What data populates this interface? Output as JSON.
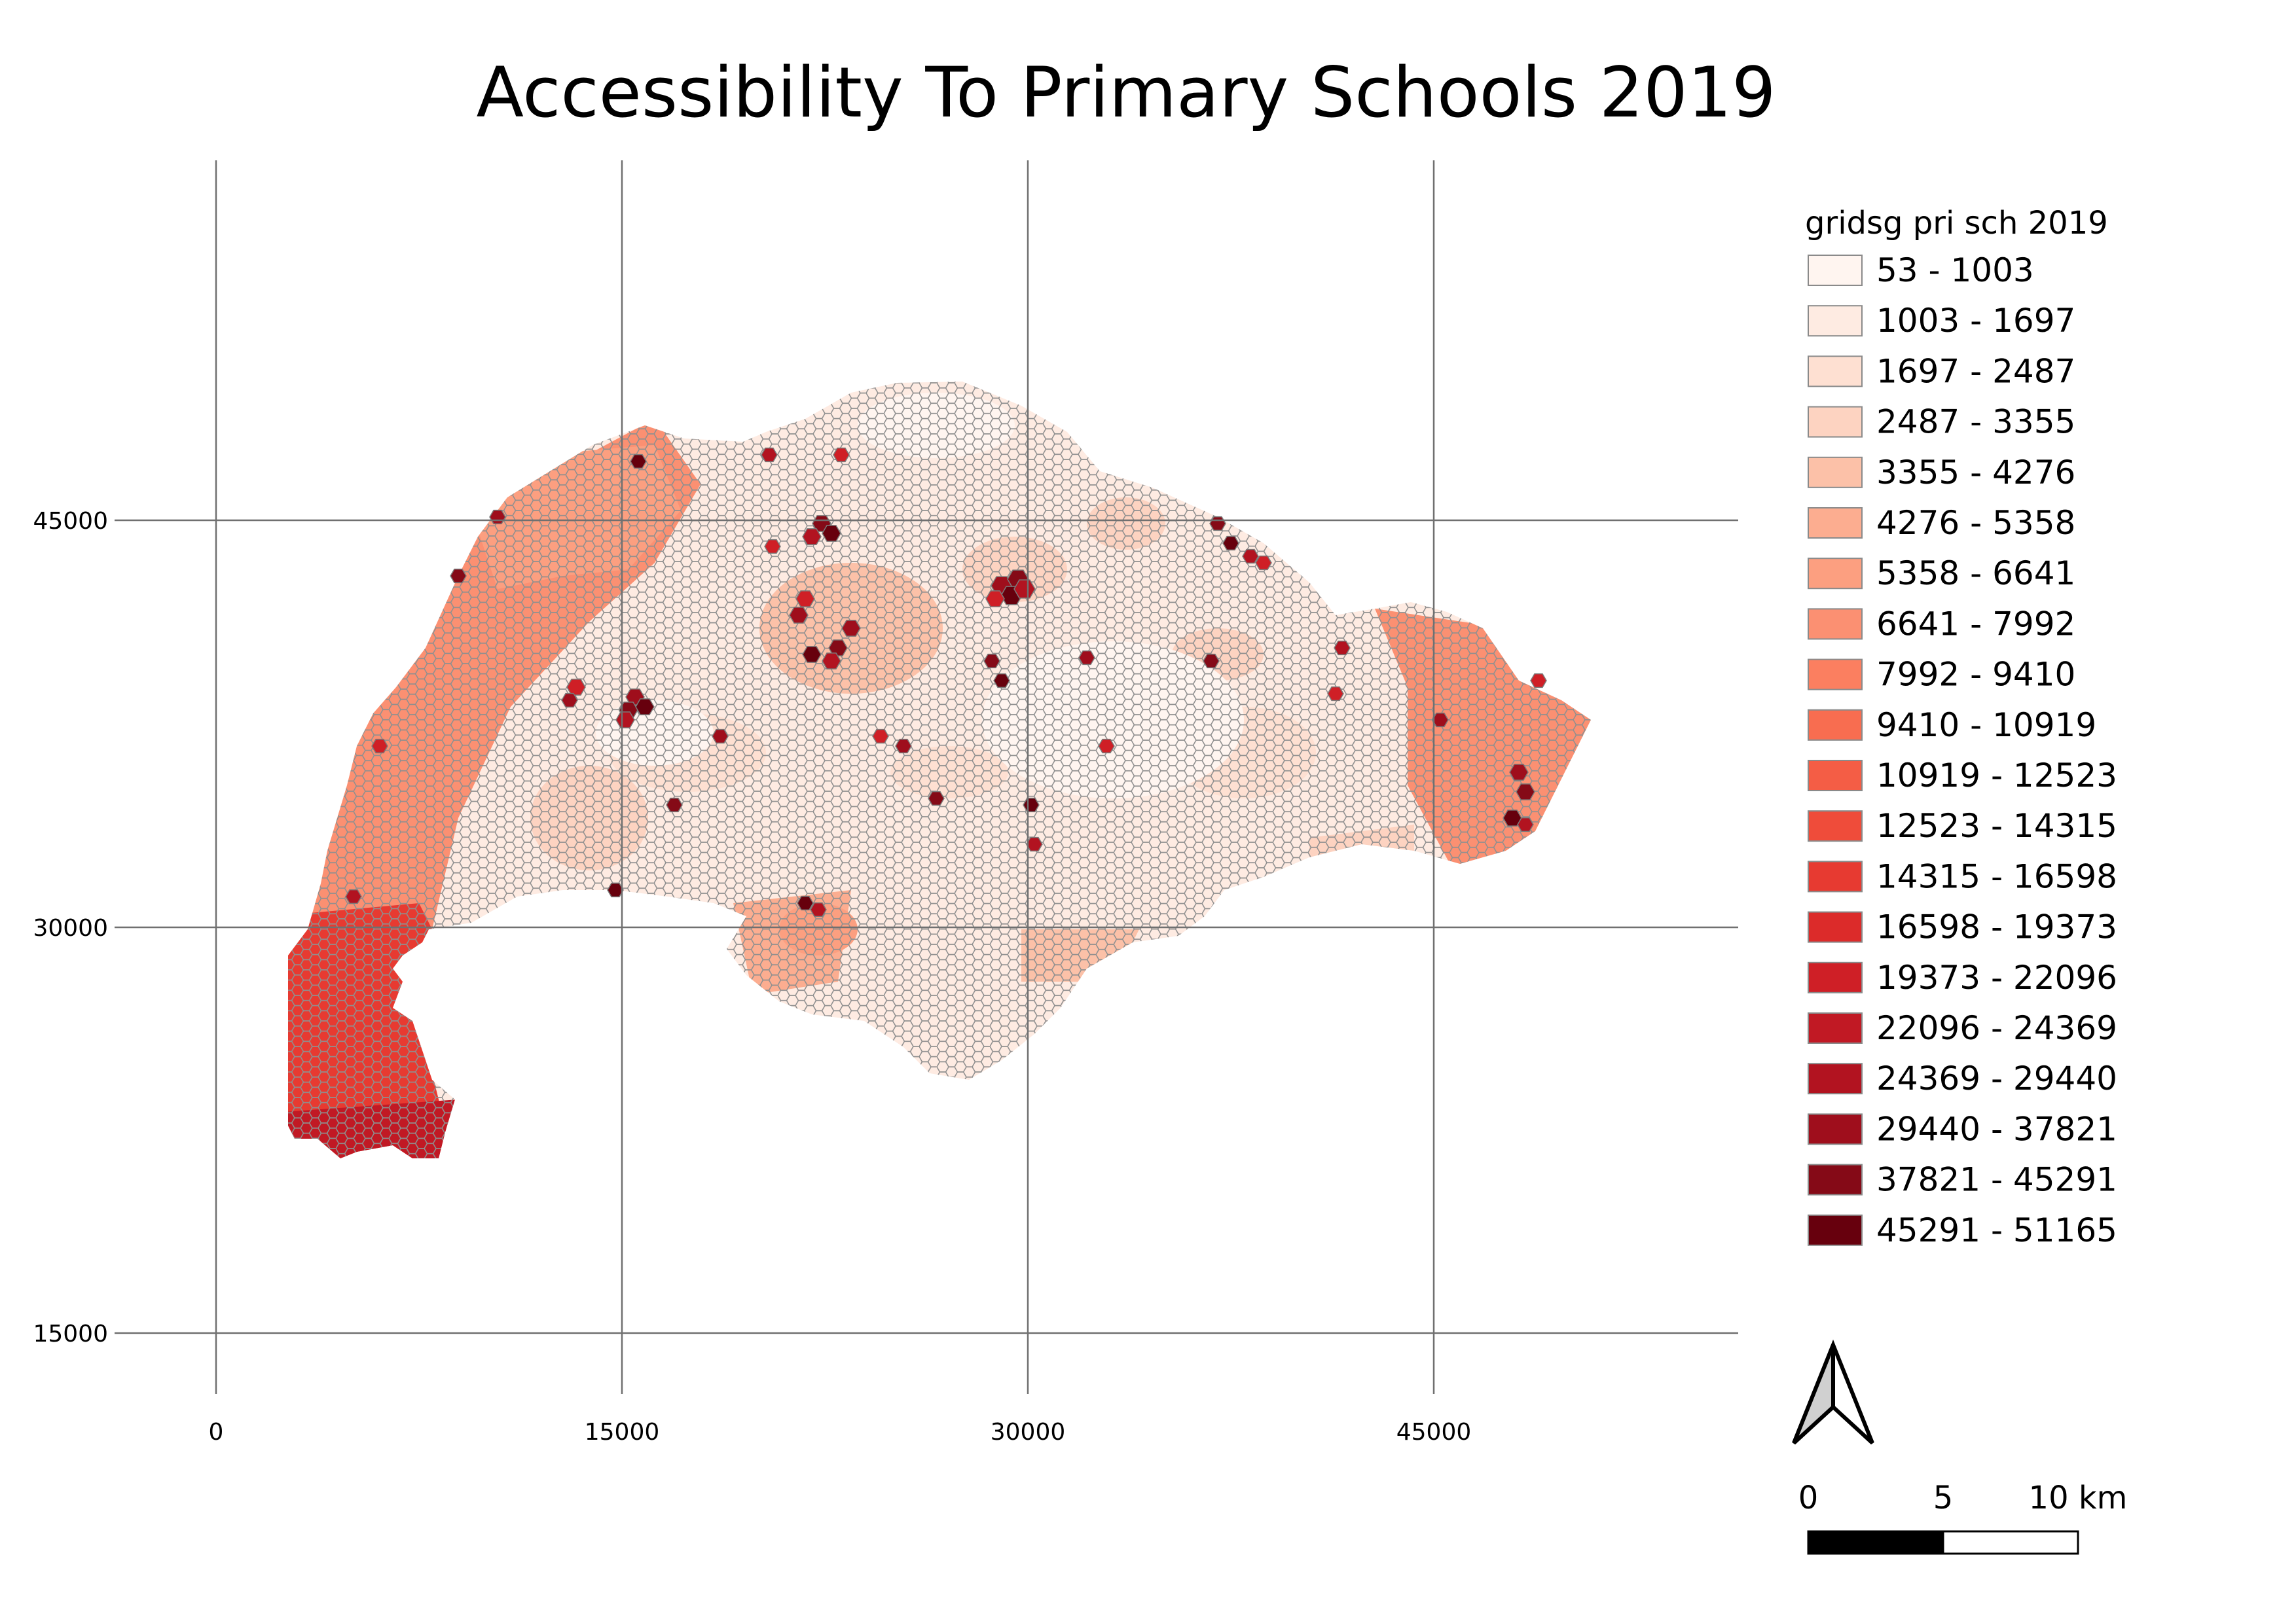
{
  "title": "Accessibility To Primary Schools 2019",
  "axes": {
    "x_ticks": [
      "0",
      "15000",
      "30000",
      "45000"
    ],
    "y_ticks": [
      "45000",
      "30000",
      "15000"
    ]
  },
  "legend": {
    "title": "gridsg pri sch 2019",
    "classes": [
      {
        "label": "53 - 1003",
        "color": "#fff5f0"
      },
      {
        "label": "1003 - 1697",
        "color": "#feebe2"
      },
      {
        "label": "1697 - 2487",
        "color": "#fee0d2"
      },
      {
        "label": "2487 - 3355",
        "color": "#fdd3c1"
      },
      {
        "label": "3355 - 4276",
        "color": "#fcc1a8"
      },
      {
        "label": "4276 - 5358",
        "color": "#fcad90"
      },
      {
        "label": "5358 - 6641",
        "color": "#fc9f80"
      },
      {
        "label": "6641 - 7992",
        "color": "#fb9072"
      },
      {
        "label": "7992 - 9410",
        "color": "#fb7f60"
      },
      {
        "label": "9410 - 10919",
        "color": "#f86d50"
      },
      {
        "label": "10919 - 12523",
        "color": "#f45d45"
      },
      {
        "label": "12523 - 14315",
        "color": "#ef4c3a"
      },
      {
        "label": "14315 - 16598",
        "color": "#e73a31"
      },
      {
        "label": "16598 - 19373",
        "color": "#dc2b2a"
      },
      {
        "label": "19373 - 22096",
        "color": "#cf1f26"
      },
      {
        "label": "22096 - 24369",
        "color": "#c11924"
      },
      {
        "label": "24369 - 29440",
        "color": "#b21320"
      },
      {
        "label": "29440 - 37821",
        "color": "#9f0e1c"
      },
      {
        "label": "37821 - 45291",
        "color": "#850a17"
      },
      {
        "label": "45291 - 51165",
        "color": "#67000d"
      }
    ]
  },
  "north_arrow": {
    "icon": "north-arrow-icon"
  },
  "scale_bar": {
    "labels": [
      "0",
      "5",
      "10 km"
    ]
  }
}
